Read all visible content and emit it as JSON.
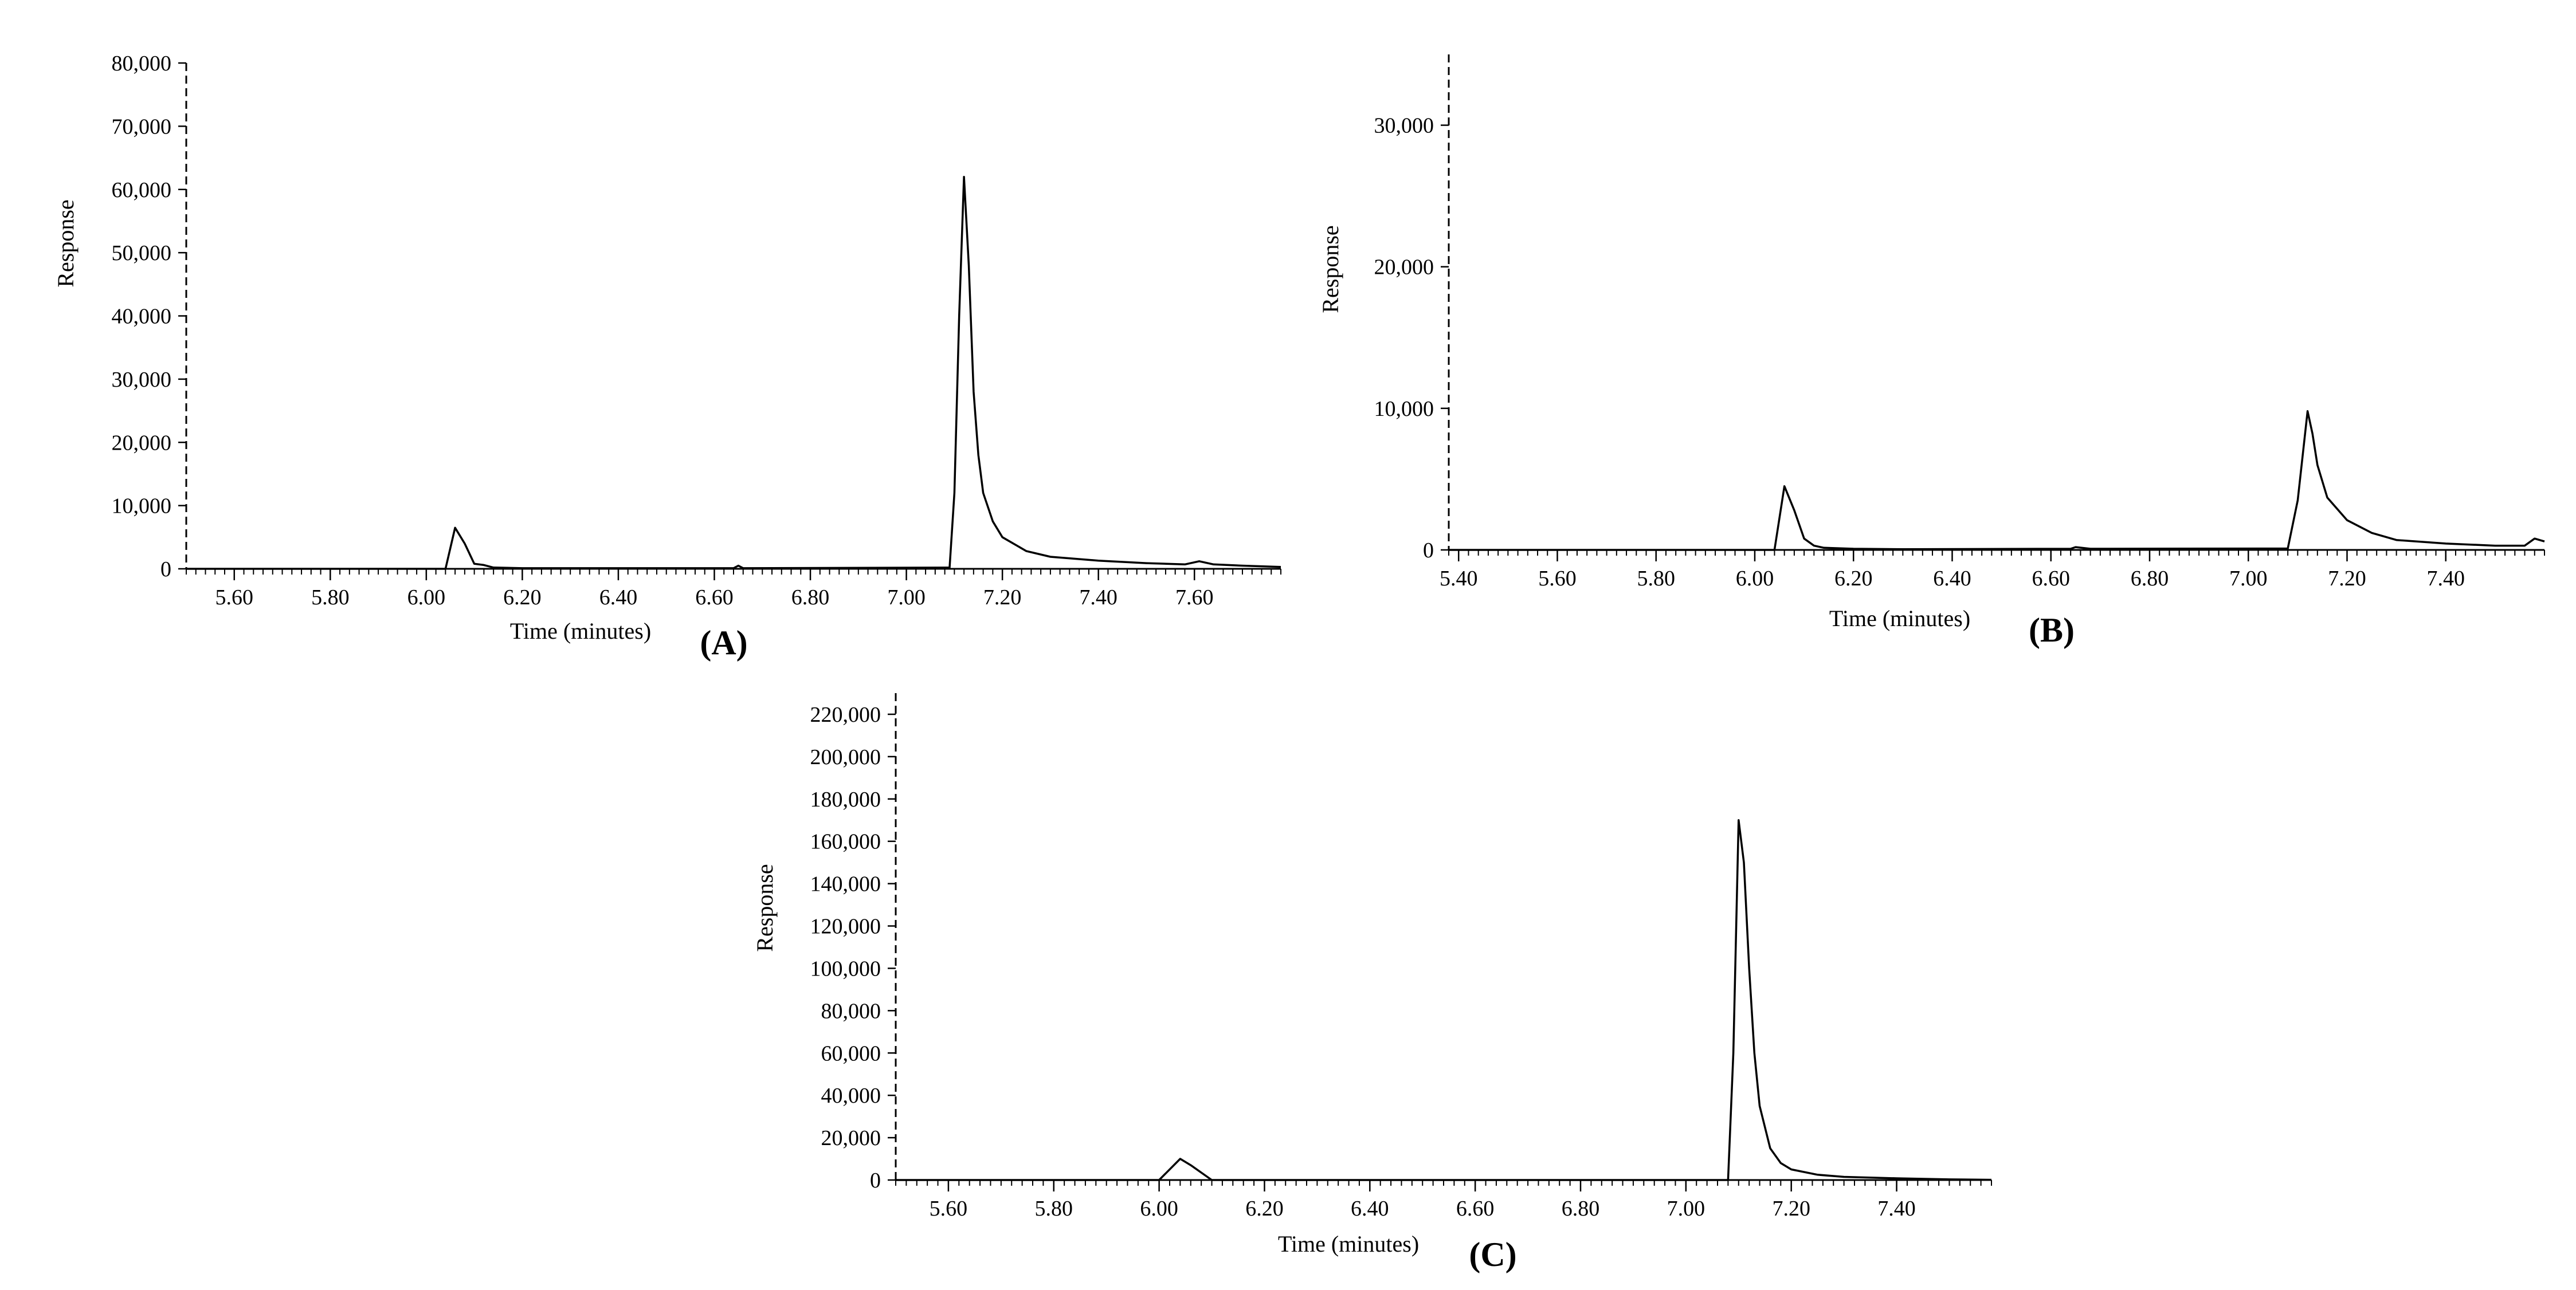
{
  "figure_labels": [
    "(A)",
    "(B)",
    "(C)"
  ],
  "chart_data": [
    {
      "type": "line",
      "panel": "(A)",
      "xlabel": "Time (minutes)",
      "ylabel": "Response",
      "xlim": [
        5.5,
        7.78
      ],
      "ylim": [
        0,
        80000
      ],
      "xticks": [
        5.6,
        5.8,
        6.0,
        6.2,
        6.4,
        6.6,
        6.8,
        7.0,
        7.2,
        7.4,
        7.6
      ],
      "xtick_labels": [
        "5.60",
        "5.80",
        "6.00",
        "6.20",
        "6.40",
        "6.60",
        "6.80",
        "7.00",
        "7.20",
        "7.40",
        "7.60"
      ],
      "yticks": [
        0,
        10000,
        20000,
        30000,
        40000,
        50000,
        60000,
        70000,
        80000
      ],
      "ytick_labels": [
        "0",
        "10,000",
        "20,000",
        "30,000",
        "40,000",
        "50,000",
        "60,000",
        "70,000",
        "80,000"
      ],
      "series": [
        {
          "x": [
            5.5,
            6.04,
            6.06,
            6.08,
            6.1,
            6.12,
            6.14,
            6.2,
            6.64,
            6.65,
            6.66,
            7.09,
            7.1,
            7.11,
            7.12,
            7.13,
            7.14,
            7.15,
            7.16,
            7.18,
            7.2,
            7.25,
            7.3,
            7.4,
            7.5,
            7.58,
            7.61,
            7.64,
            7.7,
            7.78
          ],
          "y": [
            0,
            0,
            6500,
            4000,
            800,
            600,
            200,
            100,
            100,
            500,
            100,
            200,
            12000,
            40000,
            62000,
            48000,
            28000,
            18000,
            12000,
            7500,
            5000,
            2800,
            1900,
            1300,
            900,
            700,
            1200,
            700,
            500,
            300
          ]
        }
      ]
    },
    {
      "type": "line",
      "panel": "(B)",
      "xlabel": "Time (minutes)",
      "ylabel": "Response",
      "xlim": [
        5.38,
        7.6
      ],
      "ylim": [
        0,
        35000
      ],
      "xticks": [
        5.4,
        5.6,
        5.8,
        6.0,
        6.2,
        6.4,
        6.6,
        6.8,
        7.0,
        7.2,
        7.4
      ],
      "xtick_labels": [
        "5.40",
        "5.60",
        "5.80",
        "6.00",
        "6.20",
        "6.40",
        "6.60",
        "6.80",
        "7.00",
        "7.20",
        "7.40"
      ],
      "yticks": [
        0,
        10000,
        20000,
        30000
      ],
      "ytick_labels": [
        "0",
        "10,000",
        "20,000",
        "30,000"
      ],
      "series": [
        {
          "x": [
            5.38,
            6.04,
            6.06,
            6.08,
            6.1,
            6.12,
            6.14,
            6.2,
            6.3,
            6.64,
            6.65,
            6.68,
            7.08,
            7.1,
            7.12,
            7.13,
            7.14,
            7.16,
            7.2,
            7.25,
            7.3,
            7.4,
            7.5,
            7.56,
            7.58,
            7.6
          ],
          "y": [
            0,
            0,
            4500,
            2800,
            800,
            300,
            150,
            80,
            50,
            80,
            200,
            80,
            100,
            3500,
            9800,
            8200,
            6000,
            3700,
            2100,
            1200,
            700,
            450,
            300,
            300,
            800,
            600
          ]
        }
      ]
    },
    {
      "type": "line",
      "panel": "(C)",
      "xlabel": "Time (minutes)",
      "ylabel": "Response",
      "xlim": [
        5.5,
        7.58
      ],
      "ylim": [
        0,
        230000
      ],
      "xticks": [
        5.6,
        5.8,
        6.0,
        6.2,
        6.4,
        6.6,
        6.8,
        7.0,
        7.2,
        7.4
      ],
      "xtick_labels": [
        "5.60",
        "5.80",
        "6.00",
        "6.20",
        "6.40",
        "6.60",
        "6.80",
        "7.00",
        "7.20",
        "7.40"
      ],
      "yticks": [
        0,
        20000,
        40000,
        60000,
        80000,
        100000,
        120000,
        140000,
        160000,
        180000,
        200000,
        220000
      ],
      "ytick_labels": [
        "0",
        "20,000",
        "40,000",
        "60,000",
        "80,000",
        "100,000",
        "120,000",
        "140,000",
        "160,000",
        "180,000",
        "200,000",
        "220,000"
      ],
      "series": [
        {
          "x": [
            5.5,
            6.0,
            6.04,
            6.06,
            6.1,
            6.12,
            7.08,
            7.09,
            7.1,
            7.11,
            7.12,
            7.13,
            7.14,
            7.16,
            7.18,
            7.2,
            7.25,
            7.3,
            7.4,
            7.5,
            7.58
          ],
          "y": [
            0,
            0,
            10000,
            7000,
            0,
            0,
            0,
            60000,
            170000,
            150000,
            100000,
            60000,
            35000,
            15000,
            8000,
            5000,
            2500,
            1500,
            800,
            300,
            100
          ]
        }
      ]
    }
  ]
}
